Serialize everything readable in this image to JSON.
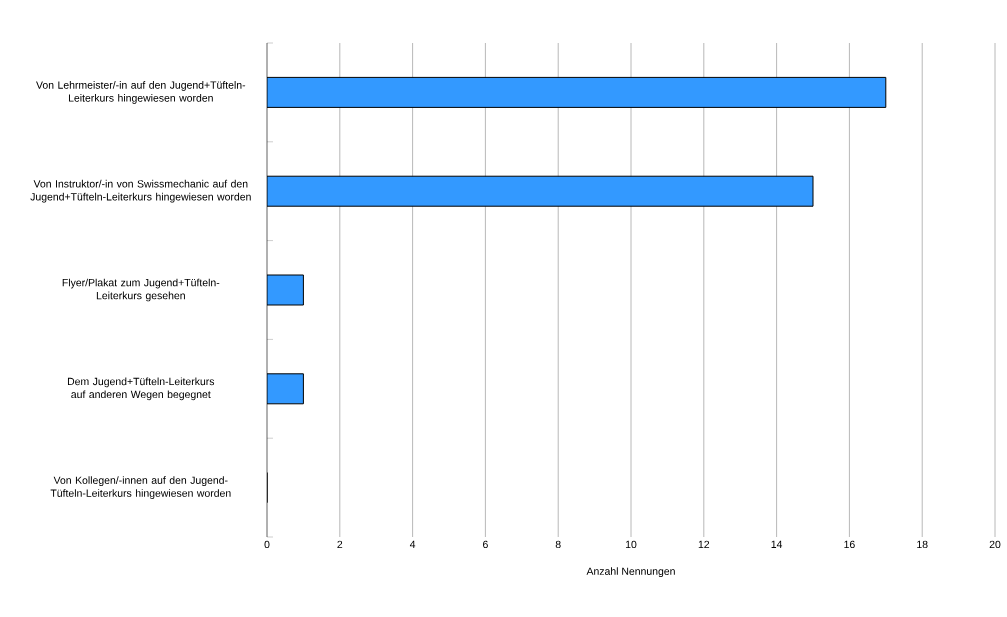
{
  "chart_data": {
    "type": "bar",
    "orientation": "horizontal",
    "xlabel": "Anzahl Nennungen",
    "categories": [
      "Von Lehrmeister/-in auf den Jugend+Tüfteln-Leiterkurs hingewiesen worden",
      "Von Instruktor/-in von Swissmechanic auf den Jugend+Tüfteln-Leiterkurs hingewiesen worden",
      "Flyer/Plakat zum Jugend+Tüfteln-Leiterkurs gesehen",
      "Dem Jugend+Tüfteln-Leiterkurs auf anderen Wegen begegnet",
      "Von Kollegen/-innen auf den Jugend-Tüfteln-Leiterkurs hingewiesen worden"
    ],
    "values": [
      17,
      15,
      1,
      1,
      0
    ],
    "color": "#3399ff",
    "xlim": [
      0,
      20
    ],
    "xticks": [
      0,
      2,
      4,
      6,
      8,
      10,
      12,
      14,
      16,
      18,
      20
    ],
    "grid": "x"
  }
}
